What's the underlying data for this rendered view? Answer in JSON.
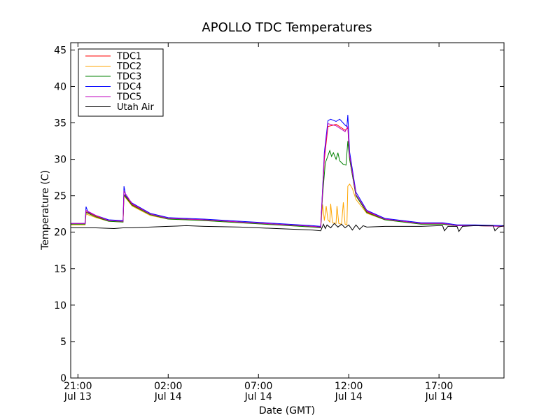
{
  "chart_data": {
    "type": "line",
    "title": "APOLLO TDC Temperatures",
    "xlabel": "Date (GMT)",
    "ylabel": "Temperature (C)",
    "ylim": [
      0,
      46
    ],
    "xlim": [
      20.6,
      44.6
    ],
    "x_unit": "hours since Jul 13 00:00 GMT",
    "yticks": [
      0,
      5,
      10,
      15,
      20,
      25,
      30,
      35,
      40,
      45
    ],
    "xticks": [
      {
        "x": 21,
        "time": "21:00",
        "date": "Jul 13"
      },
      {
        "x": 26,
        "time": "02:00",
        "date": "Jul 14"
      },
      {
        "x": 31,
        "time": "07:00",
        "date": "Jul 14"
      },
      {
        "x": 36,
        "time": "12:00",
        "date": "Jul 14"
      },
      {
        "x": 41,
        "time": "17:00",
        "date": "Jul 14"
      }
    ],
    "legend_position": "top-left",
    "grid": false,
    "series": [
      {
        "name": "TDC1",
        "color": "#ff0000",
        "points": [
          [
            20.6,
            21.2
          ],
          [
            21.4,
            21.2
          ],
          [
            21.45,
            22.8
          ],
          [
            22.0,
            22.2
          ],
          [
            22.7,
            21.6
          ],
          [
            23.5,
            21.5
          ],
          [
            23.55,
            25.2
          ],
          [
            24.0,
            23.8
          ],
          [
            25.0,
            22.5
          ],
          [
            26.0,
            21.9
          ],
          [
            28.0,
            21.7
          ],
          [
            30.0,
            21.4
          ],
          [
            32.0,
            21.1
          ],
          [
            34.0,
            20.8
          ],
          [
            34.45,
            20.7
          ],
          [
            34.65,
            30.0
          ],
          [
            34.85,
            34.5
          ],
          [
            35.3,
            34.8
          ],
          [
            35.8,
            34.0
          ],
          [
            35.95,
            34.3
          ],
          [
            36.05,
            30.0
          ],
          [
            36.4,
            25.0
          ],
          [
            37.0,
            22.8
          ],
          [
            38.0,
            21.8
          ],
          [
            40.0,
            21.2
          ],
          [
            41.2,
            21.2
          ],
          [
            42.0,
            20.9
          ],
          [
            43.0,
            20.9
          ],
          [
            44.6,
            20.8
          ]
        ]
      },
      {
        "name": "TDC2",
        "color": "#ffa500",
        "points": [
          [
            20.6,
            21.0
          ],
          [
            21.4,
            21.0
          ],
          [
            21.45,
            22.5
          ],
          [
            22.0,
            22.0
          ],
          [
            22.7,
            21.5
          ],
          [
            23.5,
            21.4
          ],
          [
            23.55,
            25.0
          ],
          [
            24.0,
            23.6
          ],
          [
            25.0,
            22.3
          ],
          [
            26.0,
            21.8
          ],
          [
            28.0,
            21.6
          ],
          [
            30.0,
            21.3
          ],
          [
            32.0,
            21.0
          ],
          [
            34.0,
            20.7
          ],
          [
            34.45,
            20.6
          ],
          [
            34.55,
            23.8
          ],
          [
            34.65,
            21.6
          ],
          [
            34.75,
            23.6
          ],
          [
            34.85,
            21.7
          ],
          [
            34.95,
            21.4
          ],
          [
            35.0,
            23.9
          ],
          [
            35.1,
            21.3
          ],
          [
            35.3,
            21.2
          ],
          [
            35.35,
            23.6
          ],
          [
            35.45,
            21.2
          ],
          [
            35.6,
            21.1
          ],
          [
            35.7,
            24.1
          ],
          [
            35.8,
            21.1
          ],
          [
            35.9,
            21.0
          ],
          [
            35.95,
            26.3
          ],
          [
            36.05,
            26.6
          ],
          [
            36.2,
            26.0
          ],
          [
            36.4,
            24.5
          ],
          [
            37.0,
            22.6
          ],
          [
            38.0,
            21.7
          ],
          [
            40.0,
            21.1
          ],
          [
            41.2,
            21.1
          ],
          [
            42.0,
            20.9
          ],
          [
            43.0,
            20.9
          ],
          [
            44.6,
            20.8
          ]
        ]
      },
      {
        "name": "TDC3",
        "color": "#008000",
        "points": [
          [
            20.6,
            21.1
          ],
          [
            21.4,
            21.1
          ],
          [
            21.45,
            22.7
          ],
          [
            22.0,
            22.1
          ],
          [
            22.7,
            21.5
          ],
          [
            23.5,
            21.4
          ],
          [
            23.55,
            25.1
          ],
          [
            24.0,
            23.7
          ],
          [
            25.0,
            22.4
          ],
          [
            26.0,
            21.8
          ],
          [
            28.0,
            21.6
          ],
          [
            30.0,
            21.3
          ],
          [
            32.0,
            21.0
          ],
          [
            34.0,
            20.7
          ],
          [
            34.45,
            20.6
          ],
          [
            34.55,
            25.0
          ],
          [
            34.7,
            29.5
          ],
          [
            34.85,
            30.5
          ],
          [
            34.95,
            31.2
          ],
          [
            35.05,
            30.4
          ],
          [
            35.15,
            30.9
          ],
          [
            35.3,
            30.0
          ],
          [
            35.4,
            30.9
          ],
          [
            35.5,
            29.8
          ],
          [
            35.7,
            29.3
          ],
          [
            35.85,
            29.2
          ],
          [
            35.95,
            32.5
          ],
          [
            36.05,
            30.0
          ],
          [
            36.4,
            25.0
          ],
          [
            37.0,
            22.7
          ],
          [
            38.0,
            21.7
          ],
          [
            40.0,
            21.1
          ],
          [
            41.2,
            21.1
          ],
          [
            42.0,
            20.9
          ],
          [
            43.0,
            20.9
          ],
          [
            44.6,
            20.8
          ]
        ]
      },
      {
        "name": "TDC4",
        "color": "#0000ff",
        "points": [
          [
            20.6,
            21.2
          ],
          [
            21.4,
            21.2
          ],
          [
            21.45,
            23.5
          ],
          [
            21.55,
            22.8
          ],
          [
            22.0,
            22.3
          ],
          [
            22.7,
            21.7
          ],
          [
            23.5,
            21.6
          ],
          [
            23.55,
            26.3
          ],
          [
            23.65,
            25.0
          ],
          [
            24.0,
            24.0
          ],
          [
            25.0,
            22.6
          ],
          [
            26.0,
            22.0
          ],
          [
            28.0,
            21.8
          ],
          [
            30.0,
            21.5
          ],
          [
            32.0,
            21.2
          ],
          [
            34.0,
            20.9
          ],
          [
            34.45,
            20.8
          ],
          [
            34.65,
            31.0
          ],
          [
            34.85,
            35.3
          ],
          [
            35.0,
            35.5
          ],
          [
            35.3,
            35.2
          ],
          [
            35.5,
            35.5
          ],
          [
            35.8,
            34.7
          ],
          [
            35.9,
            34.5
          ],
          [
            35.95,
            36.1
          ],
          [
            36.0,
            33.5
          ],
          [
            36.05,
            31.0
          ],
          [
            36.4,
            25.5
          ],
          [
            37.0,
            23.0
          ],
          [
            38.0,
            21.9
          ],
          [
            40.0,
            21.3
          ],
          [
            41.2,
            21.3
          ],
          [
            42.0,
            21.0
          ],
          [
            43.0,
            21.0
          ],
          [
            44.6,
            20.9
          ]
        ]
      },
      {
        "name": "TDC5",
        "color": "#bf00bf",
        "points": [
          [
            20.6,
            21.2
          ],
          [
            21.4,
            21.2
          ],
          [
            21.45,
            23.0
          ],
          [
            22.0,
            22.3
          ],
          [
            22.7,
            21.6
          ],
          [
            23.5,
            21.5
          ],
          [
            23.55,
            25.6
          ],
          [
            24.0,
            23.9
          ],
          [
            25.0,
            22.5
          ],
          [
            26.0,
            21.9
          ],
          [
            28.0,
            21.7
          ],
          [
            30.0,
            21.4
          ],
          [
            32.0,
            21.1
          ],
          [
            34.0,
            20.8
          ],
          [
            34.45,
            20.7
          ],
          [
            34.65,
            30.5
          ],
          [
            34.85,
            34.9
          ],
          [
            35.3,
            34.6
          ],
          [
            35.8,
            33.8
          ],
          [
            35.95,
            34.5
          ],
          [
            36.05,
            30.5
          ],
          [
            36.4,
            25.2
          ],
          [
            37.0,
            22.9
          ],
          [
            38.0,
            21.8
          ],
          [
            40.0,
            21.2
          ],
          [
            41.2,
            21.2
          ],
          [
            42.0,
            20.9
          ],
          [
            43.0,
            20.9
          ],
          [
            44.6,
            20.8
          ]
        ]
      },
      {
        "name": "Utah Air",
        "color": "#000000",
        "points": [
          [
            20.6,
            20.6
          ],
          [
            22.0,
            20.6
          ],
          [
            23.0,
            20.5
          ],
          [
            23.5,
            20.6
          ],
          [
            24.0,
            20.6
          ],
          [
            25.0,
            20.7
          ],
          [
            26.0,
            20.8
          ],
          [
            27.0,
            20.9
          ],
          [
            28.0,
            20.8
          ],
          [
            30.0,
            20.7
          ],
          [
            32.0,
            20.5
          ],
          [
            34.0,
            20.3
          ],
          [
            34.45,
            20.2
          ],
          [
            34.6,
            21.1
          ],
          [
            34.7,
            20.5
          ],
          [
            34.8,
            21.0
          ],
          [
            35.0,
            20.6
          ],
          [
            35.2,
            21.2
          ],
          [
            35.4,
            20.7
          ],
          [
            35.6,
            21.1
          ],
          [
            35.8,
            20.6
          ],
          [
            36.0,
            21.0
          ],
          [
            36.2,
            20.3
          ],
          [
            36.4,
            21.0
          ],
          [
            36.6,
            20.4
          ],
          [
            36.8,
            20.9
          ],
          [
            37.0,
            20.7
          ],
          [
            38.0,
            20.8
          ],
          [
            40.0,
            20.8
          ],
          [
            41.0,
            20.9
          ],
          [
            41.2,
            20.9
          ],
          [
            41.3,
            20.2
          ],
          [
            41.5,
            20.8
          ],
          [
            42.0,
            20.8
          ],
          [
            42.1,
            20.1
          ],
          [
            42.3,
            20.8
          ],
          [
            43.0,
            20.9
          ],
          [
            44.0,
            20.9
          ],
          [
            44.1,
            20.2
          ],
          [
            44.3,
            20.7
          ],
          [
            44.6,
            20.9
          ]
        ]
      }
    ]
  }
}
